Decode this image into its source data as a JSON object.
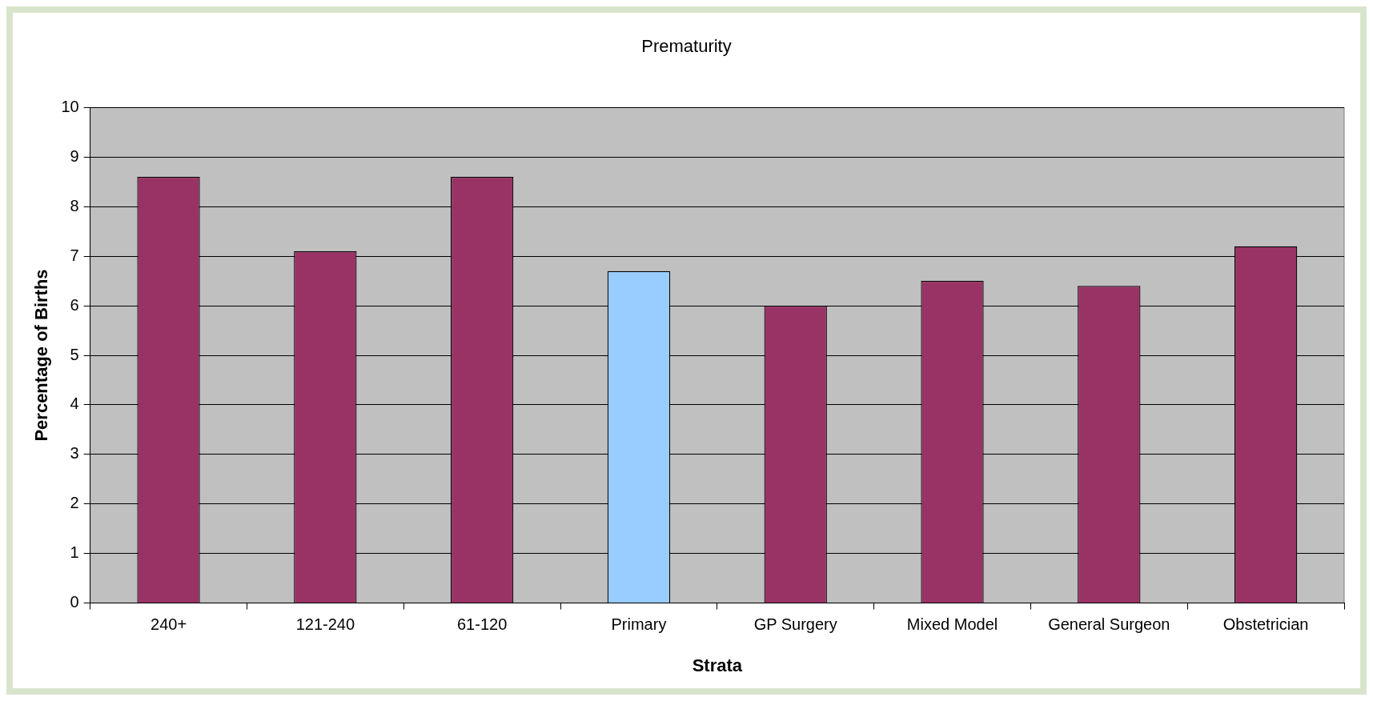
{
  "chart_data": {
    "type": "bar",
    "title": "Prematurity",
    "xlabel": "Strata",
    "ylabel": "Percentage of Births",
    "categories": [
      "240+",
      "121-240",
      "61-120",
      "Primary",
      "GP Surgery",
      "Mixed Model",
      "General Surgeon",
      "Obstetrician"
    ],
    "values": [
      8.6,
      7.1,
      8.6,
      6.7,
      6.0,
      6.5,
      6.4,
      7.2
    ],
    "colors": [
      "#993366",
      "#993366",
      "#993366",
      "#99ccff",
      "#993366",
      "#993366",
      "#993366",
      "#993366"
    ],
    "ylim": [
      0,
      10
    ],
    "yticks": [
      0,
      1,
      2,
      3,
      4,
      5,
      6,
      7,
      8,
      9,
      10
    ],
    "grid": "y",
    "legend": false
  }
}
